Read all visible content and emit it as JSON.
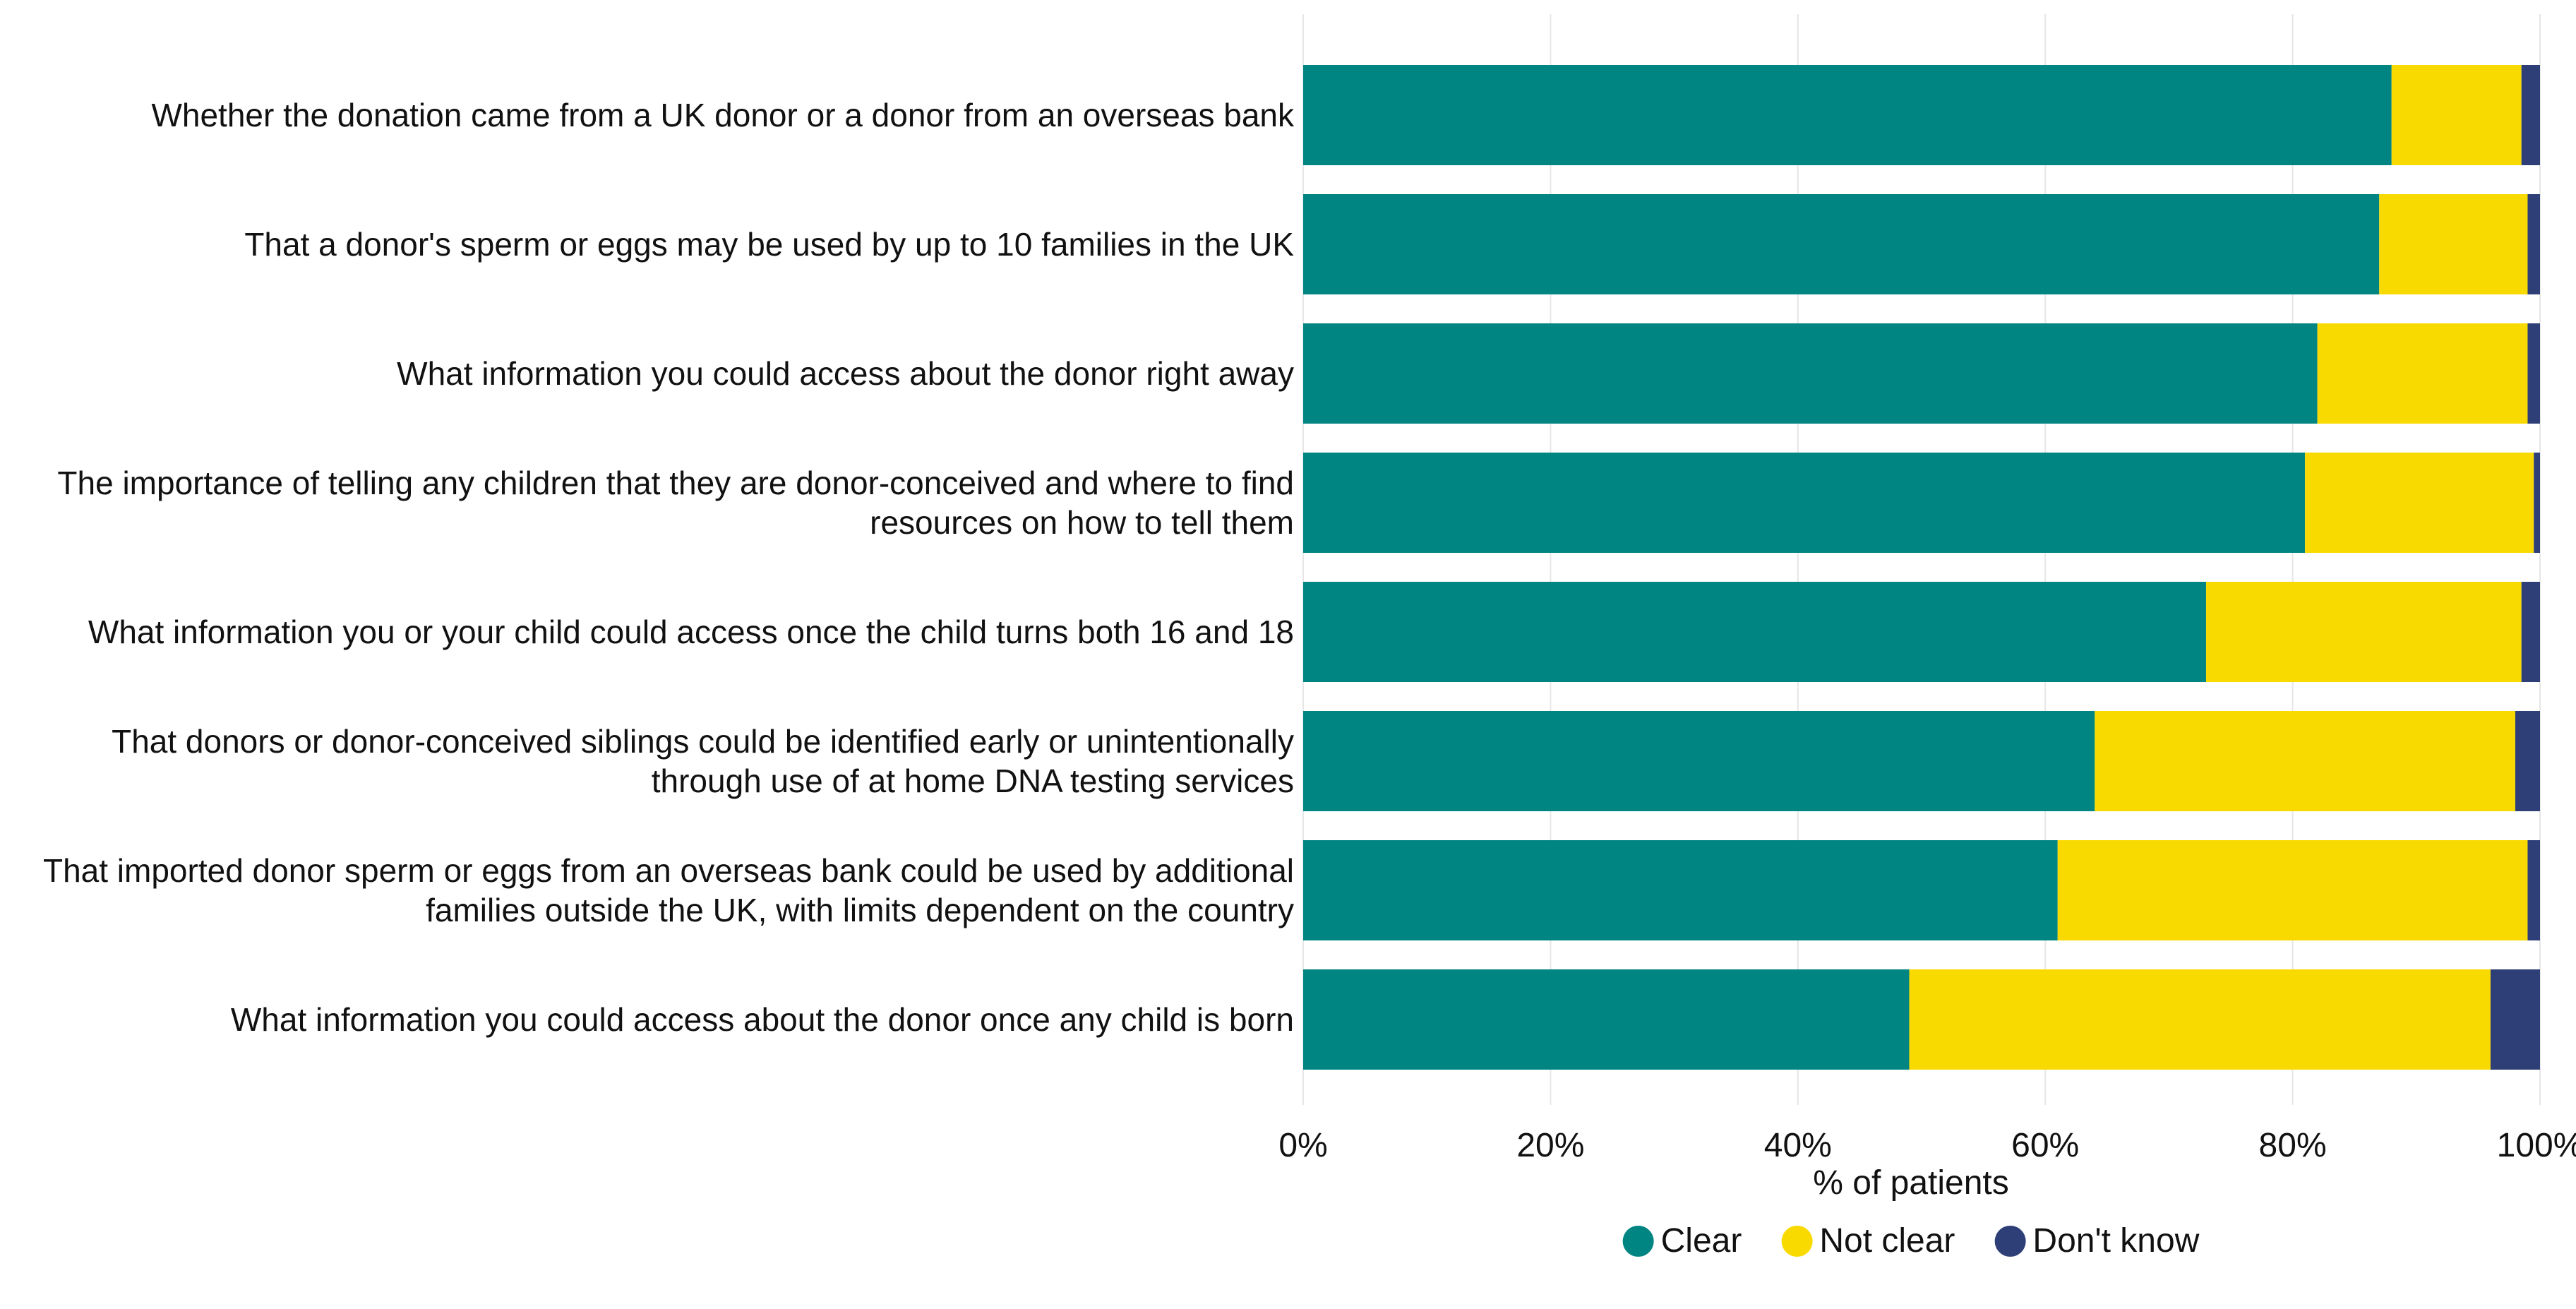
{
  "colors": {
    "clear": "#008582",
    "not_clear": "#F9DA00",
    "dont_know": "#2E3F77",
    "grid": "#e6e6e6"
  },
  "chart_data": {
    "type": "bar",
    "orientation": "horizontal",
    "stacked": true,
    "categories": [
      "Whether the donation came from a UK donor or a donor from an overseas bank",
      "That a donor's sperm or eggs may be used by up to 10 families in the UK",
      "What information you could access about the donor right away",
      "The importance of telling any children that they are donor-conceived and where to find resources on how to tell them",
      "What information you or your child could access once the child turns both 16 and 18",
      "That donors or donor-conceived siblings could be identified early or unintentionally through use of at home DNA testing services",
      "That imported donor sperm or eggs from an overseas bank could be used by additional families outside the UK, with limits dependent on the country",
      "What information you could access about the donor once any child is born"
    ],
    "series": [
      {
        "name": "Clear",
        "color": "#008582",
        "values": [
          88,
          87,
          82,
          81,
          73,
          64,
          61,
          49
        ]
      },
      {
        "name": "Not clear",
        "color": "#F9DA00",
        "values": [
          10.5,
          12,
          17,
          18.5,
          25.5,
          34,
          38,
          47
        ]
      },
      {
        "name": "Don't know",
        "color": "#2E3F77",
        "values": [
          1.5,
          1,
          1,
          0.5,
          1.5,
          2,
          1,
          4
        ]
      }
    ],
    "xlabel": "% of patients",
    "ylabel": "",
    "xlim": [
      0,
      100
    ],
    "xticks": [
      "0%",
      "20%",
      "40%",
      "60%",
      "80%",
      "100%"
    ],
    "grid": "vertical",
    "legend_position": "bottom"
  }
}
